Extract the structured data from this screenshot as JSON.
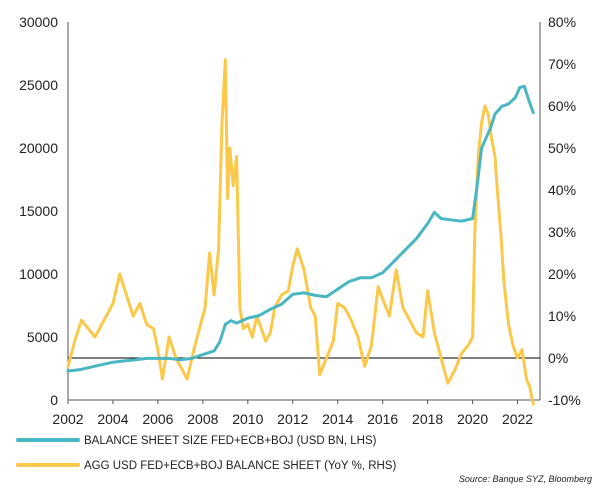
{
  "chart_data": {
    "type": "line",
    "title": "",
    "xlabel": "",
    "ylabel": "",
    "source": "Source: Banque SYZ, Bloomberg",
    "x_ticks": [
      "2002",
      "2004",
      "2006",
      "2008",
      "2010",
      "2012",
      "2014",
      "2016",
      "2018",
      "2020",
      "2022"
    ],
    "x_tick_values": [
      2002,
      2004,
      2006,
      2008,
      2010,
      2012,
      2014,
      2016,
      2018,
      2020,
      2022
    ],
    "xlim": [
      2002,
      2023
    ],
    "y_left": {
      "ticks": [
        "0",
        "5000",
        "10000",
        "15000",
        "20000",
        "25000",
        "30000"
      ],
      "tick_values": [
        0,
        5000,
        10000,
        15000,
        20000,
        25000,
        30000
      ],
      "ylim": [
        0,
        30000
      ]
    },
    "y_right": {
      "ticks": [
        "-10%",
        "0%",
        "10%",
        "20%",
        "30%",
        "40%",
        "50%",
        "60%",
        "70%",
        "80%"
      ],
      "tick_values": [
        -10,
        0,
        10,
        20,
        30,
        40,
        50,
        60,
        70,
        80
      ],
      "ylim": [
        -10,
        80
      ],
      "zero_line": 0
    },
    "legend_position": "bottom-left",
    "grid": false,
    "series": [
      {
        "name": "BALANCE SHEET SIZE FED+ECB+BOJ (USD BN, LHS)",
        "axis": "left",
        "color": "#49b6c3",
        "x": [
          2002.0,
          2002.5,
          2003.0,
          2003.5,
          2004.0,
          2004.5,
          2005.0,
          2005.5,
          2006.0,
          2006.5,
          2007.0,
          2007.5,
          2008.0,
          2008.5,
          2008.75,
          2009.0,
          2009.25,
          2009.5,
          2010.0,
          2010.5,
          2011.0,
          2011.5,
          2012.0,
          2012.5,
          2013.0,
          2013.5,
          2014.0,
          2014.5,
          2015.0,
          2015.5,
          2016.0,
          2016.5,
          2017.0,
          2017.5,
          2018.0,
          2018.3,
          2018.6,
          2019.0,
          2019.5,
          2020.0,
          2020.2,
          2020.4,
          2020.6,
          2020.8,
          2021.0,
          2021.3,
          2021.6,
          2021.9,
          2022.1,
          2022.3,
          2022.5,
          2022.7
        ],
        "values": [
          2300,
          2400,
          2600,
          2800,
          3000,
          3100,
          3200,
          3300,
          3300,
          3300,
          3200,
          3300,
          3600,
          3900,
          4600,
          6000,
          6300,
          6100,
          6500,
          6700,
          7200,
          7600,
          8400,
          8500,
          8300,
          8200,
          8800,
          9400,
          9700,
          9700,
          10100,
          11000,
          11900,
          12800,
          14000,
          14900,
          14400,
          14300,
          14200,
          14400,
          17000,
          20000,
          20800,
          21600,
          22700,
          23300,
          23500,
          24000,
          24800,
          24900,
          23800,
          22800
        ]
      },
      {
        "name": "AGG USD FED+ECB+BOJ BALANCE SHEET (YoY %, RHS)",
        "axis": "right",
        "color": "#fcc84a",
        "x": [
          2002.0,
          2002.3,
          2002.6,
          2002.9,
          2003.2,
          2003.5,
          2003.8,
          2004.0,
          2004.3,
          2004.6,
          2004.9,
          2005.2,
          2005.5,
          2005.8,
          2006.0,
          2006.2,
          2006.5,
          2006.8,
          2007.0,
          2007.3,
          2007.6,
          2007.9,
          2008.1,
          2008.3,
          2008.5,
          2008.7,
          2008.85,
          2009.0,
          2009.1,
          2009.2,
          2009.35,
          2009.5,
          2009.65,
          2009.8,
          2010.0,
          2010.2,
          2010.4,
          2010.6,
          2010.8,
          2011.0,
          2011.2,
          2011.5,
          2011.8,
          2012.0,
          2012.2,
          2012.5,
          2012.8,
          2013.0,
          2013.2,
          2013.5,
          2013.8,
          2014.0,
          2014.3,
          2014.6,
          2014.9,
          2015.2,
          2015.5,
          2015.8,
          2016.0,
          2016.3,
          2016.6,
          2016.9,
          2017.2,
          2017.5,
          2017.8,
          2018.0,
          2018.3,
          2018.6,
          2018.9,
          2019.2,
          2019.5,
          2019.8,
          2020.0,
          2020.1,
          2020.25,
          2020.4,
          2020.55,
          2020.7,
          2020.85,
          2021.0,
          2021.1,
          2021.25,
          2021.4,
          2021.6,
          2021.8,
          2022.0,
          2022.2,
          2022.4,
          2022.55,
          2022.7
        ],
        "values": [
          -2,
          4,
          9,
          7,
          5,
          8,
          11,
          13,
          20,
          15,
          10,
          13,
          8,
          7,
          2,
          -5,
          5,
          0,
          -2,
          -5,
          2,
          8,
          12,
          25,
          15,
          26,
          56,
          71,
          38,
          50,
          41,
          48,
          12,
          7,
          8,
          5,
          10,
          7,
          4,
          6,
          12,
          15,
          16,
          22,
          26,
          21,
          12,
          10,
          -4,
          0,
          4,
          13,
          12,
          9,
          5,
          -2,
          3,
          17,
          14,
          10,
          21,
          12,
          9,
          6,
          5,
          16,
          6,
          0,
          -6,
          -3,
          1,
          3,
          5,
          30,
          48,
          56,
          60,
          58,
          52,
          48,
          40,
          30,
          18,
          8,
          3,
          0,
          2,
          -5,
          -7,
          -11
        ]
      }
    ]
  }
}
